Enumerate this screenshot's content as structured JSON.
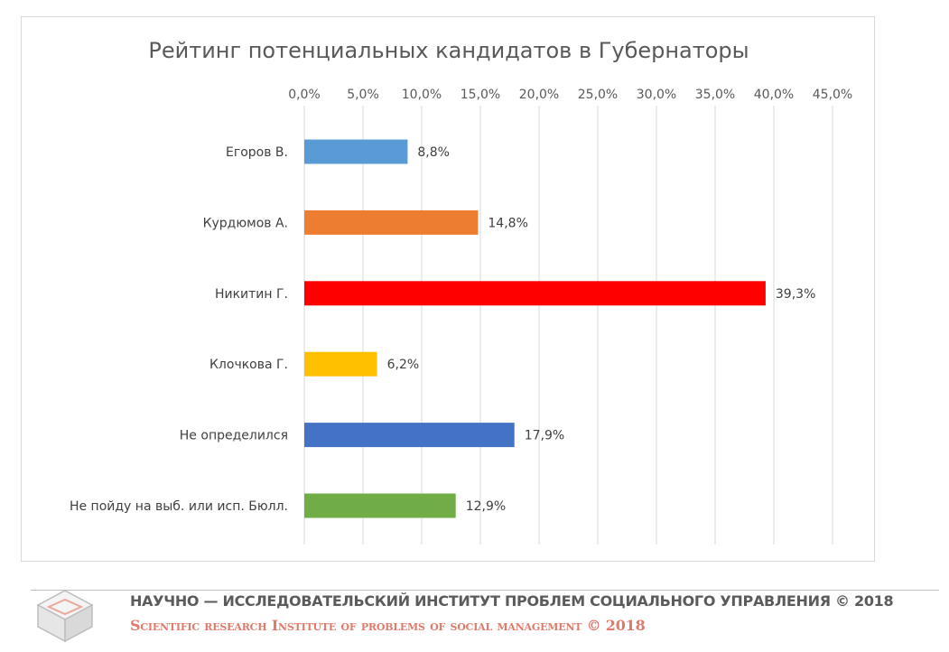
{
  "chart_data": {
    "type": "bar",
    "orientation": "horizontal",
    "title": "Рейтинг потенциальных кандидатов в Губернаторы",
    "xlim": [
      0,
      45
    ],
    "x_ticks": [
      "0,0%",
      "5,0%",
      "10,0%",
      "15,0%",
      "20,0%",
      "25,0%",
      "30,0%",
      "35,0%",
      "40,0%",
      "45,0%"
    ],
    "x_axis_position": "top",
    "grid": true,
    "categories": [
      "Егоров В.",
      "Курдюмов А.",
      "Никитин Г.",
      "Клочкова Г.",
      "Не определился",
      "Не пойду на выб. или исп. Бюлл."
    ],
    "values": [
      8.8,
      14.8,
      39.3,
      6.2,
      17.9,
      12.9
    ],
    "data_labels": [
      "8,8%",
      "14,8%",
      "39,3%",
      "6,2%",
      "17,9%",
      "12,9%"
    ],
    "colors": [
      "#5b9bd5",
      "#ed7d31",
      "#ff0000",
      "#ffc000",
      "#4472c4",
      "#70ad47"
    ]
  },
  "footer": {
    "ru": "НАУЧНО — ИССЛЕДОВАТЕЛЬСКИЙ ИНСТИТУТ ПРОБЛЕМ СОЦИАЛЬНОГО УПРАВЛЕНИЯ © 2018",
    "en": "Scientific research Institute of problems of social management © 2018",
    "logo_icon": "cube-logo-icon"
  }
}
